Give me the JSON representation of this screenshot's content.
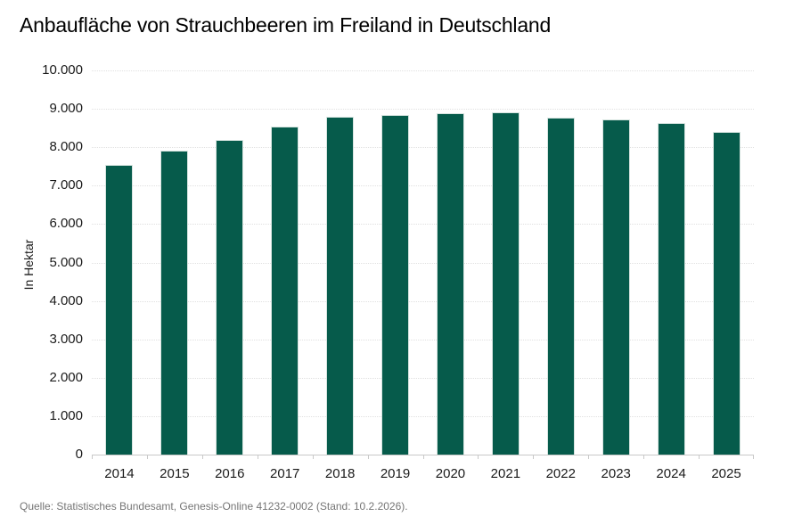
{
  "source_note": "Quelle: Statistisches Bundesamt, Genesis-Online 41232-0002 (Stand: 10.2.2026).",
  "chart_data": {
    "type": "bar",
    "title": "Anbaufläche von Strauchbeeren im Freiland in Deutschland",
    "ylabel": "In Hektar",
    "xlabel": "",
    "categories": [
      "2014",
      "2015",
      "2016",
      "2017",
      "2018",
      "2019",
      "2020",
      "2021",
      "2022",
      "2023",
      "2024",
      "2025"
    ],
    "values": [
      7550,
      7910,
      8190,
      8530,
      8790,
      8840,
      8890,
      8920,
      8780,
      8730,
      8630,
      8400
    ],
    "unit": "Hektar",
    "ylim": [
      0,
      10000
    ],
    "ytick_step": 1000,
    "ytick_labels": [
      "0",
      "1.000",
      "2.000",
      "3.000",
      "4.000",
      "5.000",
      "6.000",
      "7.000",
      "8.000",
      "9.000",
      "10.000"
    ],
    "grid": "horizontal dotted",
    "legend_position": "none"
  },
  "colors": {
    "background": "#ffffff",
    "bar": "#065b4b",
    "bar_border": "#d7e4e0",
    "grid": "#e0e0e0",
    "axis": "#c9c9c9",
    "text": "#1a1a1a",
    "source": "#757575"
  }
}
